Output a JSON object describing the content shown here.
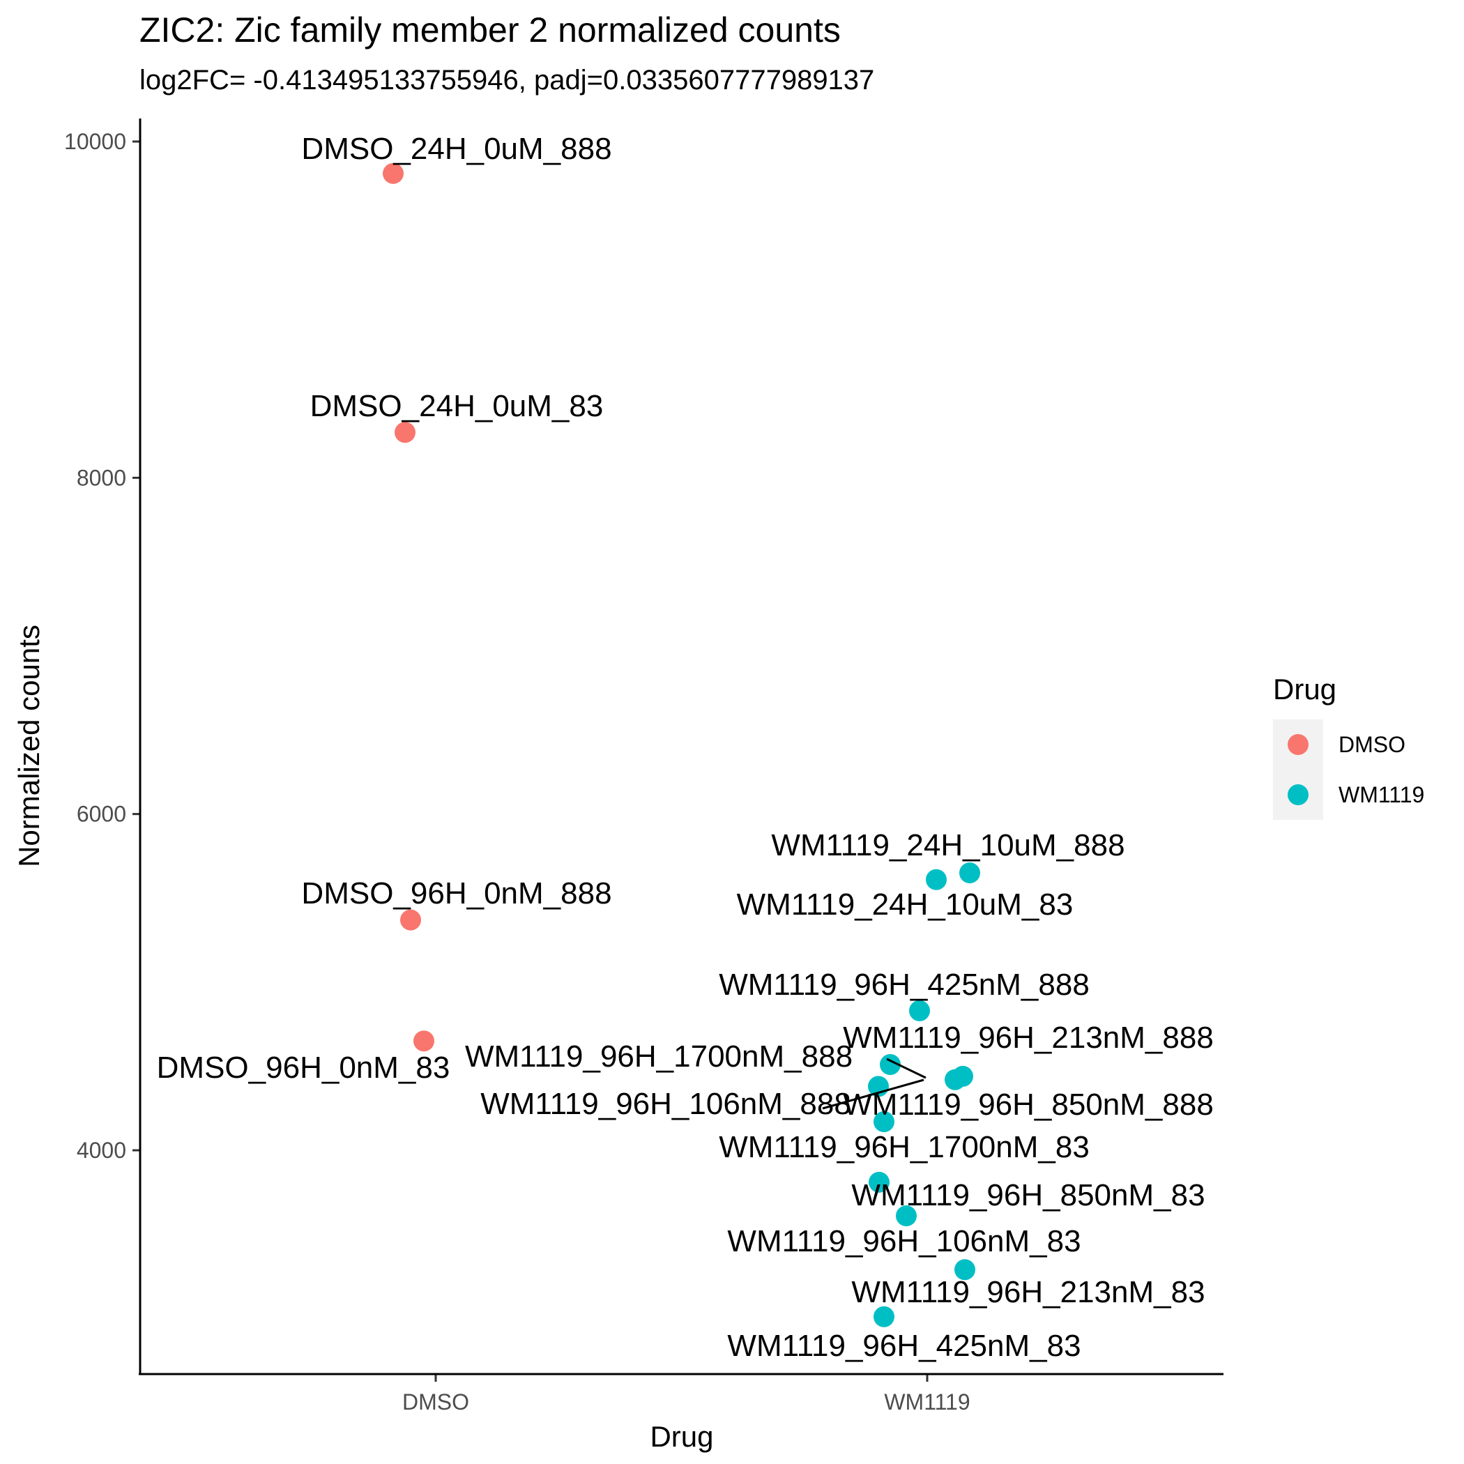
{
  "chart_data": {
    "type": "scatter",
    "title": "ZIC2: Zic family member 2 normalized counts",
    "subtitle": "log2FC= -0.413495133755946, padj=0.0335607777989137",
    "xlabel": "Drug",
    "ylabel": "Normalized counts",
    "categories": [
      "DMSO",
      "WM1119"
    ],
    "y_ticks": [
      4000,
      6000,
      8000,
      10000
    ],
    "y_tick_labels": [
      "4000",
      "6000",
      "8000",
      "10000"
    ],
    "ylim": [
      2650,
      10130
    ],
    "grid": false,
    "legend": {
      "title": "Drug",
      "position": "right",
      "entries": [
        {
          "label": "DMSO",
          "color": "#F8766D"
        },
        {
          "label": "WM1119",
          "color": "#00BFC4"
        }
      ]
    },
    "series": [
      {
        "name": "DMSO",
        "color": "#F8766D",
        "points": [
          {
            "label": "DMSO_24H_0uM_888",
            "x": "DMSO",
            "y": 9810
          },
          {
            "label": "DMSO_24H_0uM_83",
            "x": "DMSO",
            "y": 8270
          },
          {
            "label": "DMSO_96H_0nM_888",
            "x": "DMSO",
            "y": 5370
          },
          {
            "label": "DMSO_96H_0nM_83",
            "x": "DMSO",
            "y": 4650
          }
        ]
      },
      {
        "name": "WM1119",
        "color": "#00BFC4",
        "points": [
          {
            "label": "WM1119_24H_10uM_888",
            "x": "WM1119",
            "y": 5650
          },
          {
            "label": "WM1119_24H_10uM_83",
            "x": "WM1119",
            "y": 5610
          },
          {
            "label": "WM1119_96H_425nM_888",
            "x": "WM1119",
            "y": 4830
          },
          {
            "label": "WM1119_96H_1700nM_888",
            "x": "WM1119",
            "y": 4510
          },
          {
            "label": "WM1119_96H_213nM_888",
            "x": "WM1119",
            "y": 4440
          },
          {
            "label": "WM1119_96H_850nM_888",
            "x": "WM1119",
            "y": 4420
          },
          {
            "label": "WM1119_96H_106nM_888",
            "x": "WM1119",
            "y": 4380
          },
          {
            "label": "WM1119_96H_1700nM_83",
            "x": "WM1119",
            "y": 4170
          },
          {
            "label": "WM1119_96H_850nM_83",
            "x": "WM1119",
            "y": 3810
          },
          {
            "label": "WM1119_96H_106nM_83",
            "x": "WM1119",
            "y": 3610
          },
          {
            "label": "WM1119_96H_213nM_83",
            "x": "WM1119",
            "y": 3290
          },
          {
            "label": "WM1119_96H_425nM_83",
            "x": "WM1119",
            "y": 3010
          }
        ]
      }
    ]
  }
}
